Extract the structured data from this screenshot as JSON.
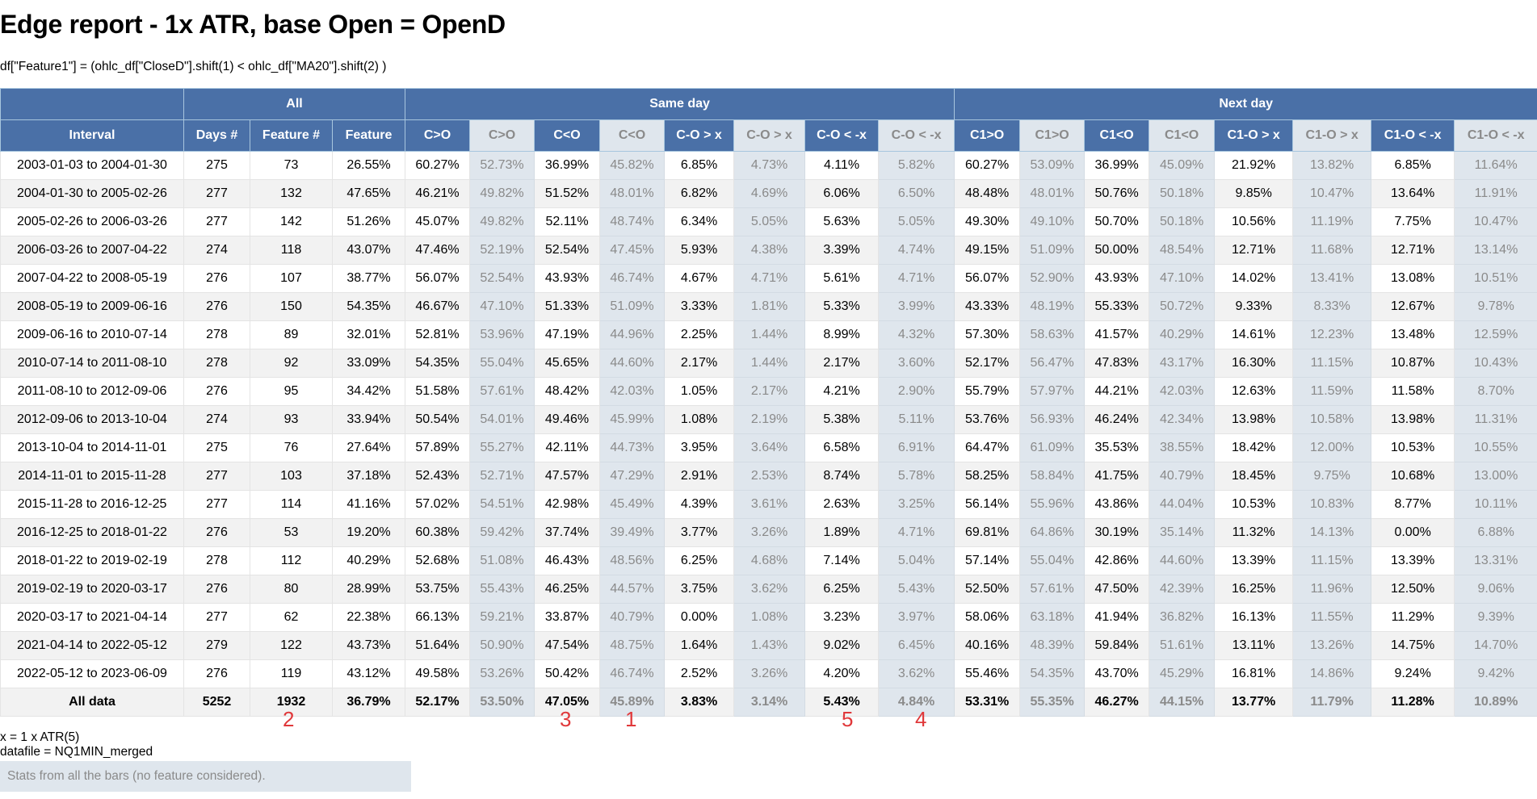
{
  "title": "Edge report - 1x ATR, base Open = OpenD",
  "formula": "df[\"Feature1\"] = (ohlc_df[\"CloseD\"].shift(1) < ohlc_df[\"MA20\"].shift(2) )",
  "groups": [
    {
      "label": "",
      "span": 1
    },
    {
      "label": "All",
      "span": 3
    },
    {
      "label": "Same day",
      "span": 8
    },
    {
      "label": "Next day",
      "span": 8
    }
  ],
  "columns": [
    "Interval",
    "Days #",
    "Feature #",
    "Feature",
    "C>O",
    "C>O",
    "C<O",
    "C<O",
    "C-O > x",
    "C-O > x",
    "C-O < -x",
    "C-O < -x",
    "C1>O",
    "C1>O",
    "C1<O",
    "C1<O",
    "C1-O > x",
    "C1-O > x",
    "C1-O < -x",
    "C1-O < -x"
  ],
  "rows": [
    [
      "2003-01-03 to 2004-01-30",
      "275",
      "73",
      "26.55%",
      "60.27%",
      "52.73%",
      "36.99%",
      "45.82%",
      "6.85%",
      "4.73%",
      "4.11%",
      "5.82%",
      "60.27%",
      "53.09%",
      "36.99%",
      "45.09%",
      "21.92%",
      "13.82%",
      "6.85%",
      "11.64%"
    ],
    [
      "2004-01-30 to 2005-02-26",
      "277",
      "132",
      "47.65%",
      "46.21%",
      "49.82%",
      "51.52%",
      "48.01%",
      "6.82%",
      "4.69%",
      "6.06%",
      "6.50%",
      "48.48%",
      "48.01%",
      "50.76%",
      "50.18%",
      "9.85%",
      "10.47%",
      "13.64%",
      "11.91%"
    ],
    [
      "2005-02-26 to 2006-03-26",
      "277",
      "142",
      "51.26%",
      "45.07%",
      "49.82%",
      "52.11%",
      "48.74%",
      "6.34%",
      "5.05%",
      "5.63%",
      "5.05%",
      "49.30%",
      "49.10%",
      "50.70%",
      "50.18%",
      "10.56%",
      "11.19%",
      "7.75%",
      "10.47%"
    ],
    [
      "2006-03-26 to 2007-04-22",
      "274",
      "118",
      "43.07%",
      "47.46%",
      "52.19%",
      "52.54%",
      "47.45%",
      "5.93%",
      "4.38%",
      "3.39%",
      "4.74%",
      "49.15%",
      "51.09%",
      "50.00%",
      "48.54%",
      "12.71%",
      "11.68%",
      "12.71%",
      "13.14%"
    ],
    [
      "2007-04-22 to 2008-05-19",
      "276",
      "107",
      "38.77%",
      "56.07%",
      "52.54%",
      "43.93%",
      "46.74%",
      "4.67%",
      "4.71%",
      "5.61%",
      "4.71%",
      "56.07%",
      "52.90%",
      "43.93%",
      "47.10%",
      "14.02%",
      "13.41%",
      "13.08%",
      "10.51%"
    ],
    [
      "2008-05-19 to 2009-06-16",
      "276",
      "150",
      "54.35%",
      "46.67%",
      "47.10%",
      "51.33%",
      "51.09%",
      "3.33%",
      "1.81%",
      "5.33%",
      "3.99%",
      "43.33%",
      "48.19%",
      "55.33%",
      "50.72%",
      "9.33%",
      "8.33%",
      "12.67%",
      "9.78%"
    ],
    [
      "2009-06-16 to 2010-07-14",
      "278",
      "89",
      "32.01%",
      "52.81%",
      "53.96%",
      "47.19%",
      "44.96%",
      "2.25%",
      "1.44%",
      "8.99%",
      "4.32%",
      "57.30%",
      "58.63%",
      "41.57%",
      "40.29%",
      "14.61%",
      "12.23%",
      "13.48%",
      "12.59%"
    ],
    [
      "2010-07-14 to 2011-08-10",
      "278",
      "92",
      "33.09%",
      "54.35%",
      "55.04%",
      "45.65%",
      "44.60%",
      "2.17%",
      "1.44%",
      "2.17%",
      "3.60%",
      "52.17%",
      "56.47%",
      "47.83%",
      "43.17%",
      "16.30%",
      "11.15%",
      "10.87%",
      "10.43%"
    ],
    [
      "2011-08-10 to 2012-09-06",
      "276",
      "95",
      "34.42%",
      "51.58%",
      "57.61%",
      "48.42%",
      "42.03%",
      "1.05%",
      "2.17%",
      "4.21%",
      "2.90%",
      "55.79%",
      "57.97%",
      "44.21%",
      "42.03%",
      "12.63%",
      "11.59%",
      "11.58%",
      "8.70%"
    ],
    [
      "2012-09-06 to 2013-10-04",
      "274",
      "93",
      "33.94%",
      "50.54%",
      "54.01%",
      "49.46%",
      "45.99%",
      "1.08%",
      "2.19%",
      "5.38%",
      "5.11%",
      "53.76%",
      "56.93%",
      "46.24%",
      "42.34%",
      "13.98%",
      "10.58%",
      "13.98%",
      "11.31%"
    ],
    [
      "2013-10-04 to 2014-11-01",
      "275",
      "76",
      "27.64%",
      "57.89%",
      "55.27%",
      "42.11%",
      "44.73%",
      "3.95%",
      "3.64%",
      "6.58%",
      "6.91%",
      "64.47%",
      "61.09%",
      "35.53%",
      "38.55%",
      "18.42%",
      "12.00%",
      "10.53%",
      "10.55%"
    ],
    [
      "2014-11-01 to 2015-11-28",
      "277",
      "103",
      "37.18%",
      "52.43%",
      "52.71%",
      "47.57%",
      "47.29%",
      "2.91%",
      "2.53%",
      "8.74%",
      "5.78%",
      "58.25%",
      "58.84%",
      "41.75%",
      "40.79%",
      "18.45%",
      "9.75%",
      "10.68%",
      "13.00%"
    ],
    [
      "2015-11-28 to 2016-12-25",
      "277",
      "114",
      "41.16%",
      "57.02%",
      "54.51%",
      "42.98%",
      "45.49%",
      "4.39%",
      "3.61%",
      "2.63%",
      "3.25%",
      "56.14%",
      "55.96%",
      "43.86%",
      "44.04%",
      "10.53%",
      "10.83%",
      "8.77%",
      "10.11%"
    ],
    [
      "2016-12-25 to 2018-01-22",
      "276",
      "53",
      "19.20%",
      "60.38%",
      "59.42%",
      "37.74%",
      "39.49%",
      "3.77%",
      "3.26%",
      "1.89%",
      "4.71%",
      "69.81%",
      "64.86%",
      "30.19%",
      "35.14%",
      "11.32%",
      "14.13%",
      "0.00%",
      "6.88%"
    ],
    [
      "2018-01-22 to 2019-02-19",
      "278",
      "112",
      "40.29%",
      "52.68%",
      "51.08%",
      "46.43%",
      "48.56%",
      "6.25%",
      "4.68%",
      "7.14%",
      "5.04%",
      "57.14%",
      "55.04%",
      "42.86%",
      "44.60%",
      "13.39%",
      "11.15%",
      "13.39%",
      "13.31%"
    ],
    [
      "2019-02-19 to 2020-03-17",
      "276",
      "80",
      "28.99%",
      "53.75%",
      "55.43%",
      "46.25%",
      "44.57%",
      "3.75%",
      "3.62%",
      "6.25%",
      "5.43%",
      "52.50%",
      "57.61%",
      "47.50%",
      "42.39%",
      "16.25%",
      "11.96%",
      "12.50%",
      "9.06%"
    ],
    [
      "2020-03-17 to 2021-04-14",
      "277",
      "62",
      "22.38%",
      "66.13%",
      "59.21%",
      "33.87%",
      "40.79%",
      "0.00%",
      "1.08%",
      "3.23%",
      "3.97%",
      "58.06%",
      "63.18%",
      "41.94%",
      "36.82%",
      "16.13%",
      "11.55%",
      "11.29%",
      "9.39%"
    ],
    [
      "2021-04-14 to 2022-05-12",
      "279",
      "122",
      "43.73%",
      "51.64%",
      "50.90%",
      "47.54%",
      "48.75%",
      "1.64%",
      "1.43%",
      "9.02%",
      "6.45%",
      "40.16%",
      "48.39%",
      "59.84%",
      "51.61%",
      "13.11%",
      "13.26%",
      "14.75%",
      "14.70%"
    ],
    [
      "2022-05-12 to 2023-06-09",
      "276",
      "119",
      "43.12%",
      "49.58%",
      "53.26%",
      "50.42%",
      "46.74%",
      "2.52%",
      "3.26%",
      "4.20%",
      "3.62%",
      "55.46%",
      "54.35%",
      "43.70%",
      "45.29%",
      "16.81%",
      "14.86%",
      "9.24%",
      "9.42%"
    ]
  ],
  "total": [
    "All data",
    "5252",
    "1932",
    "36.79%",
    "52.17%",
    "53.50%",
    "47.05%",
    "45.89%",
    "3.83%",
    "3.14%",
    "5.43%",
    "4.84%",
    "53.31%",
    "55.35%",
    "46.27%",
    "44.15%",
    "13.77%",
    "11.79%",
    "11.28%",
    "10.89%"
  ],
  "annotations": [
    "2",
    "3",
    "1",
    "5",
    "4"
  ],
  "notes": {
    "x": "x = 1 x ATR(5)",
    "datafile": "datafile = NQ1MIN_merged",
    "stats": "Stats from all the bars (no feature considered)."
  }
}
